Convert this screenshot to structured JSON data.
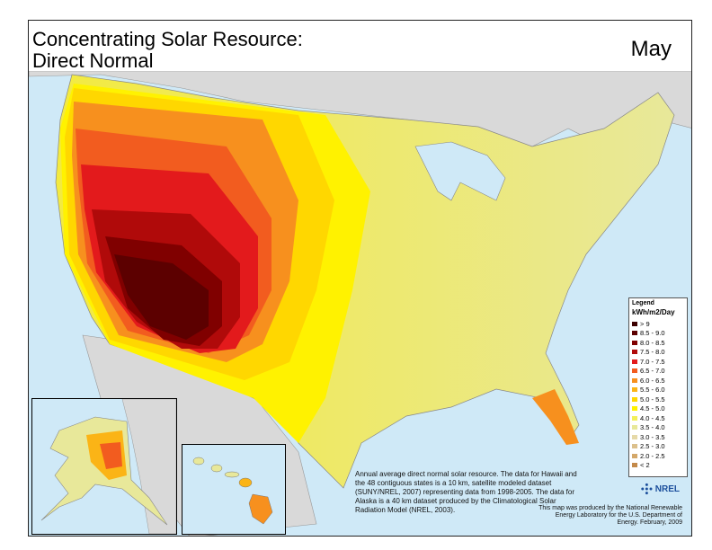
{
  "title": {
    "line1": "Concentrating Solar Resource:",
    "line2": "Direct Normal"
  },
  "month": "May",
  "legend": {
    "title": "Legend",
    "unit": "kWh/m2/Day",
    "classes": [
      {
        "label": "> 9",
        "color": "#3d0000"
      },
      {
        "label": "8.5 - 9.0",
        "color": "#5c0000"
      },
      {
        "label": "8.0 - 8.5",
        "color": "#800000"
      },
      {
        "label": "7.5 - 8.0",
        "color": "#b00a0a"
      },
      {
        "label": "7.0 - 7.5",
        "color": "#e31a1c"
      },
      {
        "label": "6.5 - 7.0",
        "color": "#f25c1f"
      },
      {
        "label": "6.0 - 6.5",
        "color": "#f7901e"
      },
      {
        "label": "5.5 - 6.0",
        "color": "#fbb416"
      },
      {
        "label": "5.0 - 5.5",
        "color": "#ffd700"
      },
      {
        "label": "4.5 - 5.0",
        "color": "#fff200"
      },
      {
        "label": "4.0 - 4.5",
        "color": "#f3f05a"
      },
      {
        "label": "3.5 - 4.0",
        "color": "#e8e89a"
      },
      {
        "label": "3.0 - 3.5",
        "color": "#e6d9a8"
      },
      {
        "label": "2.5 - 3.0",
        "color": "#dcc08c"
      },
      {
        "label": "2.0 - 2.5",
        "color": "#d4a86a"
      },
      {
        "label": "< 2",
        "color": "#c48a4a"
      }
    ]
  },
  "note": "Annual average direct normal solar resource.  The data for Hawaii and the 48 contiguous states is a 10 km, satellite modeled dataset (SUNY/NREL, 2007) representing data from 1998-2005. The data for Alaska is a 40 km dataset produced by the Climatological Solar Radiation Model (NREL, 2003).",
  "credit": "This map was produced by the National Renewable Energy Laboratory for the U.S. Department of Energy. February, 2009",
  "logo_text": "NREL",
  "colors": {
    "water": "#cfe9f7",
    "land_other": "#d9d9d9"
  }
}
